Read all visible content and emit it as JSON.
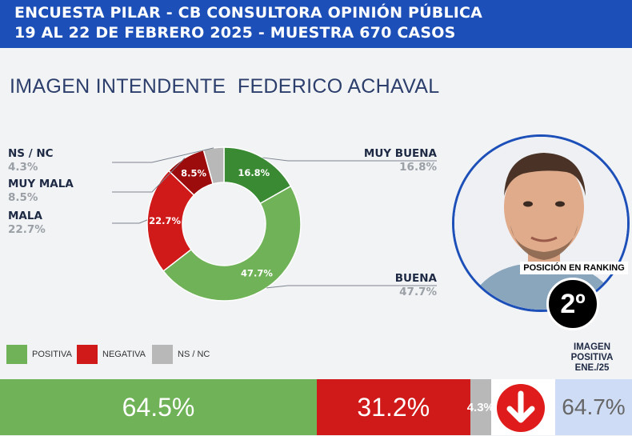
{
  "header": {
    "line1": "ENCUESTA PILAR - CB CONSULTORA OPINIÓN PÚBLICA",
    "line2": "19 AL 22 DE FEBRERO 2025 - MUESTRA 670 CASOS"
  },
  "title": "IMAGEN INTENDENTE  FEDERICO ACHAVAL",
  "chart_data": {
    "type": "pie",
    "title": "IMAGEN INTENDENTE  FEDERICO ACHAVAL",
    "slices": [
      {
        "label": "MUY BUENA",
        "value": 16.8,
        "display": "16.8%",
        "color": "#3a8a33"
      },
      {
        "label": "BUENA",
        "value": 47.7,
        "display": "47.7%",
        "color": "#6fb257"
      },
      {
        "label": "MALA",
        "value": 22.7,
        "display": "22.7%",
        "color": "#d01919"
      },
      {
        "label": "MUY MALA",
        "value": 8.5,
        "display": "8.5%",
        "color": "#9c0c0c"
      },
      {
        "label": "NS / NC",
        "value": 4.3,
        "display": "4.3%",
        "color": "#b8b8b8"
      }
    ],
    "summary": [
      {
        "label": "POSITIVA",
        "value": 64.5,
        "display": "64.5%",
        "color": "#6fb257"
      },
      {
        "label": "NEGATIVA",
        "value": 31.2,
        "display": "31.2%",
        "color": "#d01919"
      },
      {
        "label": "NS / NC",
        "value": 4.3,
        "display": "4.3%",
        "color": "#b8b8b8"
      }
    ]
  },
  "ranking": {
    "label": "POSICIÓN EN RANKING",
    "value": "2º"
  },
  "previous": {
    "label": "IMAGEN POSITIVA ENE./25",
    "value": "64.7%"
  },
  "icons": {
    "photo": "person-photo",
    "trend": "arrow-down-icon"
  }
}
